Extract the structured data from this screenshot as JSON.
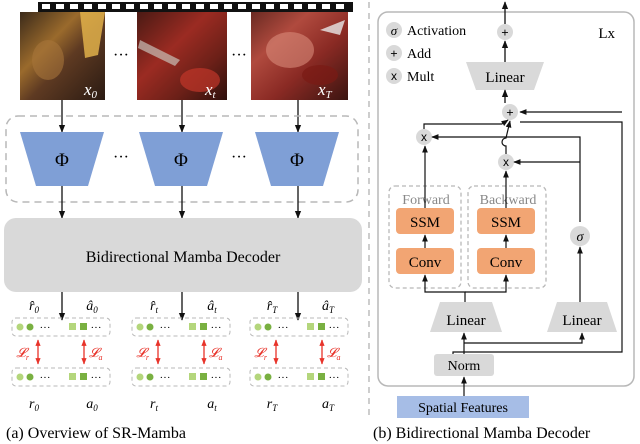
{
  "panel_a": {
    "caption": "(a) Overview of SR-Mamba",
    "frames": [
      {
        "label_base": "x",
        "label_sub": "0"
      },
      {
        "label_base": "x",
        "label_sub": "t"
      },
      {
        "label_base": "x",
        "label_sub": "T"
      }
    ],
    "ellipsis": "···",
    "encoder_symbol": "Φ",
    "decoder_label": "Bidirectional Mamba Decoder",
    "groups": [
      {
        "r_hat": "r̂",
        "r_hat_sub": "0",
        "a_hat": "â",
        "a_hat_sub": "0",
        "r": "r",
        "r_sub": "0",
        "a": "a",
        "a_sub": "0"
      },
      {
        "r_hat": "r̂",
        "r_hat_sub": "t",
        "a_hat": "â",
        "a_hat_sub": "t",
        "r": "r",
        "r_sub": "t",
        "a": "a",
        "a_sub": "t"
      },
      {
        "r_hat": "r̂",
        "r_hat_sub": "T",
        "a_hat": "â",
        "a_hat_sub": "T",
        "r": "r",
        "r_sub": "T",
        "a": "a",
        "a_sub": "T"
      }
    ],
    "loss_r": "𝓛",
    "loss_r_sub": "r",
    "loss_a": "𝓛",
    "loss_a_sub": "a",
    "dots": "···"
  },
  "panel_b": {
    "caption": "(b) Bidirectional Mamba Decoder",
    "repeat_label": "Lx",
    "legend": [
      {
        "symbol": "σ",
        "text": "Activation"
      },
      {
        "symbol": "+",
        "text": "Add"
      },
      {
        "symbol": "x",
        "text": "Mult"
      }
    ],
    "linear_top": "Linear",
    "linear_left": "Linear",
    "linear_right": "Linear",
    "forward_label": "Forward",
    "backward_label": "Backward",
    "ssm_label": "SSM",
    "conv_label": "Conv",
    "sigma": "σ",
    "mult_symbol": "x",
    "add_symbol": "+",
    "norm_label": "Norm",
    "input_label": "Spatial Features"
  },
  "colors": {
    "encoder_blue": "#7f9fd6",
    "decoder_gray": "#d9d9d9",
    "ssm_orange": "#f2a573",
    "input_blue": "#a6bde6",
    "loss_red": "#e8332a",
    "pred_green": "#79b041",
    "gt_green": "#b4d67c"
  }
}
